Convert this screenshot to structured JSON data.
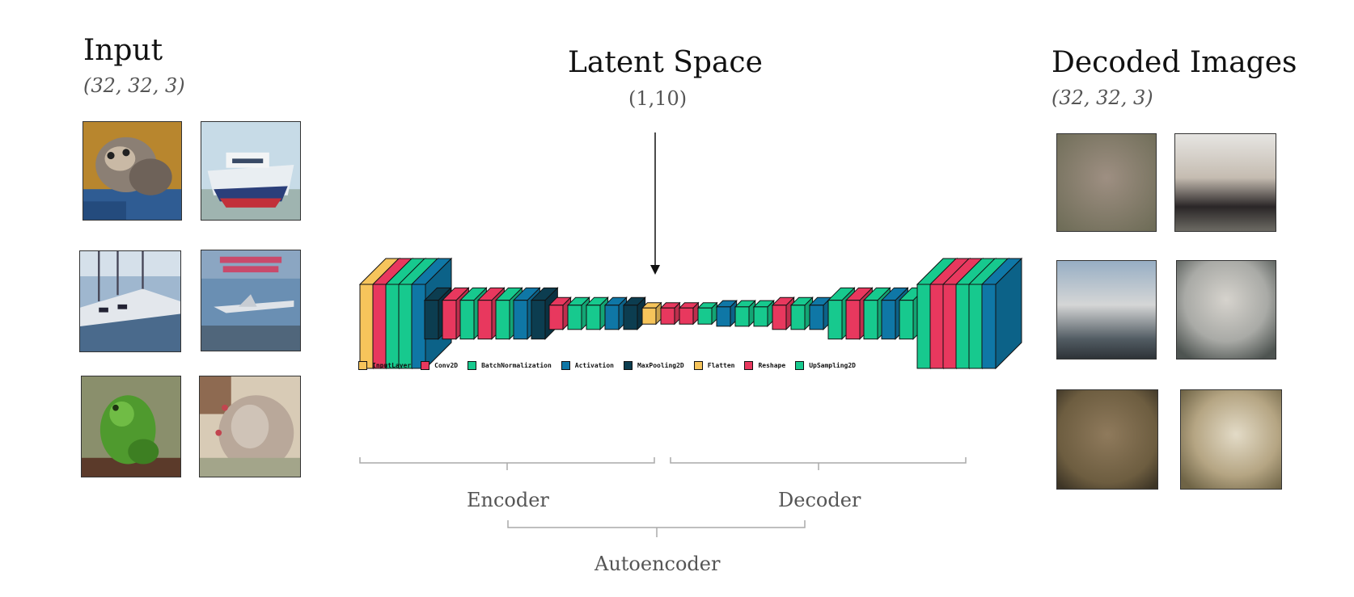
{
  "input": {
    "title": "Input",
    "shape": "(32, 32, 3)"
  },
  "latent": {
    "title": "Latent Space",
    "shape": "(1,10)"
  },
  "decoded": {
    "title": "Decoded Images",
    "shape": "(32, 32, 3)"
  },
  "brackets": {
    "encoder": "Encoder",
    "decoder": "Decoder",
    "autoencoder": "Autoencoder"
  },
  "layer_colors": {
    "InputLayer": "#f6c45b",
    "Conv2D": "#e8385e",
    "BatchNormalization": "#17c98e",
    "Activation": "#0f77a6",
    "MaxPooling2D": "#0c3d50",
    "Flatten": "#f6c45b",
    "Reshape": "#e8385e",
    "UpSampling2D": "#17c98e"
  },
  "legend": [
    {
      "label": "InputLayer",
      "color": "#f6c45b"
    },
    {
      "label": "Conv2D",
      "color": "#e8385e"
    },
    {
      "label": "BatchNormalization",
      "color": "#17c98e"
    },
    {
      "label": "Activation",
      "color": "#0f77a6"
    },
    {
      "label": "MaxPooling2D",
      "color": "#0c3d50"
    },
    {
      "label": "Flatten",
      "color": "#f6c45b"
    },
    {
      "label": "Reshape",
      "color": "#e8385e"
    },
    {
      "label": "UpSampling2D",
      "color": "#17c98e"
    }
  ],
  "network_layers": [
    "InputLayer",
    "Conv2D",
    "BatchNormalization",
    "BatchNormalization",
    "Activation",
    "MaxPooling2D",
    "Conv2D",
    "BatchNormalization",
    "Conv2D",
    "BatchNormalization",
    "Activation",
    "MaxPooling2D",
    "Conv2D",
    "BatchNormalization",
    "BatchNormalization",
    "Activation",
    "MaxPooling2D",
    "Flatten",
    "Reshape",
    "Conv2D",
    "BatchNormalization",
    "Activation",
    "BatchNormalization",
    "UpSampling2D",
    "Conv2D",
    "BatchNormalization",
    "Activation",
    "UpSampling2D",
    "Conv2D",
    "BatchNormalization",
    "Activation",
    "UpSampling2D",
    "BatchNormalization",
    "Conv2D",
    "Conv2D",
    "BatchNormalization",
    "BatchNormalization",
    "Activation"
  ],
  "input_images": [
    "cat",
    "ship",
    "boat",
    "airplane-poster",
    "frog",
    "cat-face"
  ],
  "decoded_images": [
    "blur-olive",
    "blur-dark",
    "blur-sky",
    "blur-grey",
    "blur-brown",
    "blur-tan"
  ]
}
